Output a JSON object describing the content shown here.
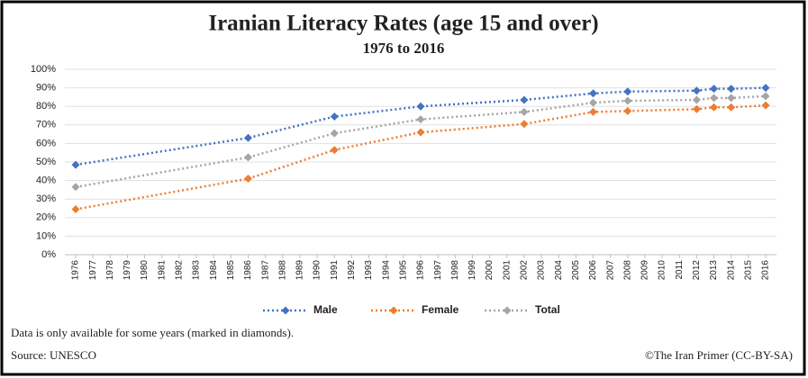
{
  "chart_data": {
    "type": "line",
    "title": "Iranian Literacy Rates (age 15 and over)",
    "subtitle": "1976 to 2016",
    "x": [
      1976,
      1986,
      1991,
      1996,
      2002,
      2006,
      2008,
      2012,
      2013,
      2014,
      2016
    ],
    "series": [
      {
        "name": "Male",
        "color": "#4472c4",
        "values": [
          48.5,
          63,
          74.5,
          80,
          83.5,
          87,
          88,
          88.5,
          89.5,
          89.5,
          90
        ]
      },
      {
        "name": "Female",
        "color": "#ed7d31",
        "values": [
          24.5,
          41,
          56.5,
          66,
          70.5,
          77,
          77.5,
          78.5,
          79.5,
          79.5,
          80.5
        ]
      },
      {
        "name": "Total",
        "color": "#a5a5a5",
        "values": [
          36.5,
          52.5,
          65.5,
          73,
          77,
          82,
          83,
          83.5,
          84.5,
          84.5,
          85.5
        ]
      }
    ],
    "xlim": [
      1976,
      2016
    ],
    "xticks": [
      1976,
      1977,
      1978,
      1979,
      1980,
      1981,
      1982,
      1983,
      1984,
      1985,
      1986,
      1987,
      1988,
      1989,
      1990,
      1991,
      1992,
      1993,
      1994,
      1995,
      1996,
      1997,
      1998,
      1999,
      2000,
      2001,
      2002,
      2003,
      2004,
      2005,
      2006,
      2007,
      2008,
      2009,
      2010,
      2011,
      2012,
      2013,
      2014,
      2015,
      2016
    ],
    "ylim": [
      0,
      100
    ],
    "yticks": [
      {
        "value": 0,
        "label": "0%"
      },
      {
        "value": 10,
        "label": "10%"
      },
      {
        "value": 20,
        "label": "20%"
      },
      {
        "value": 30,
        "label": "30%"
      },
      {
        "value": 40,
        "label": "40%"
      },
      {
        "value": 50,
        "label": "50%"
      },
      {
        "value": 60,
        "label": "60%"
      },
      {
        "value": 70,
        "label": "70%"
      },
      {
        "value": 80,
        "label": "80%"
      },
      {
        "value": 90,
        "label": "90%"
      },
      {
        "value": 100,
        "label": "100%"
      }
    ],
    "grid": true,
    "legend": "bottom",
    "note": "Data is only available for some years (marked in diamonds).",
    "source": "Source: UNESCO",
    "credit": "©The Iran Primer (CC-BY-SA)"
  }
}
